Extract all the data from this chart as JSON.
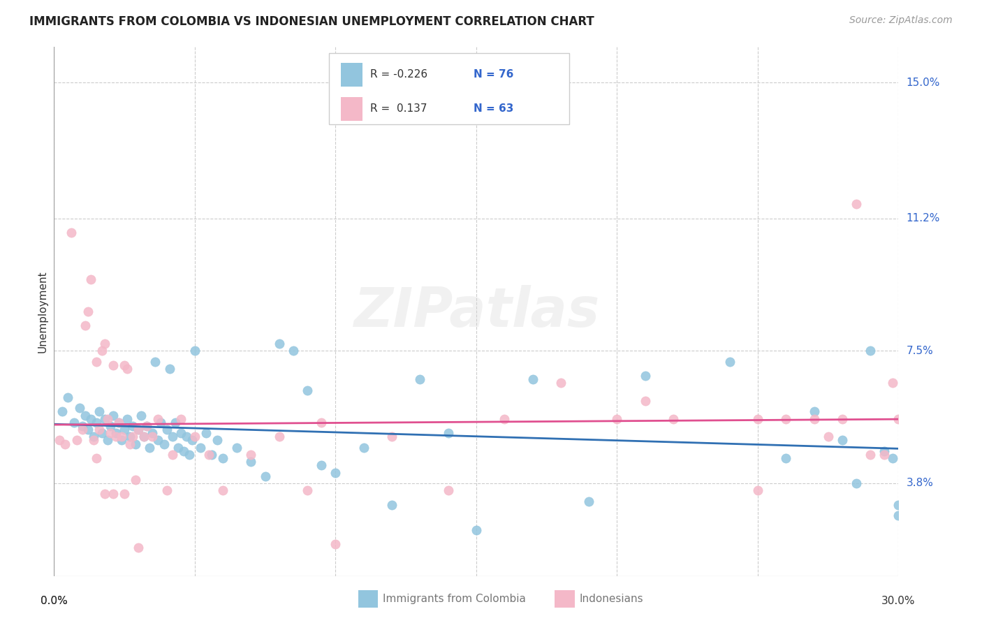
{
  "title": "IMMIGRANTS FROM COLOMBIA VS INDONESIAN UNEMPLOYMENT CORRELATION CHART",
  "source": "Source: ZipAtlas.com",
  "ylabel": "Unemployment",
  "yticks": [
    3.8,
    7.5,
    11.2,
    15.0
  ],
  "ytick_labels": [
    "3.8%",
    "7.5%",
    "11.2%",
    "15.0%"
  ],
  "xmin": 0.0,
  "xmax": 30.0,
  "ymin": 1.2,
  "ymax": 16.0,
  "legend_labels": [
    "Immigrants from Colombia",
    "Indonesians"
  ],
  "legend_R_blue": "-0.226",
  "legend_N_blue": "76",
  "legend_R_pink": "0.137",
  "legend_N_pink": "63",
  "color_blue": "#92c5de",
  "color_pink": "#f4b8c8",
  "color_line_blue": "#3070b3",
  "color_line_pink": "#e05090",
  "color_text_blue": "#3366cc",
  "watermark": "ZIPatlas",
  "blue_scatter_x": [
    0.3,
    0.5,
    0.7,
    0.9,
    1.0,
    1.1,
    1.2,
    1.3,
    1.4,
    1.5,
    1.6,
    1.7,
    1.8,
    1.9,
    2.0,
    2.1,
    2.2,
    2.3,
    2.4,
    2.5,
    2.6,
    2.7,
    2.8,
    2.9,
    3.0,
    3.1,
    3.2,
    3.3,
    3.4,
    3.5,
    3.6,
    3.7,
    3.8,
    3.9,
    4.0,
    4.1,
    4.2,
    4.3,
    4.4,
    4.5,
    4.6,
    4.7,
    4.8,
    4.9,
    5.0,
    5.2,
    5.4,
    5.6,
    5.8,
    6.0,
    6.5,
    7.0,
    7.5,
    8.0,
    8.5,
    9.0,
    9.5,
    10.0,
    11.0,
    12.0,
    13.0,
    14.0,
    15.0,
    17.0,
    19.0,
    21.0,
    24.0,
    26.0,
    27.0,
    28.0,
    28.5,
    29.0,
    29.5,
    29.8,
    30.0,
    30.0
  ],
  "blue_scatter_y": [
    5.8,
    6.2,
    5.5,
    5.9,
    5.4,
    5.7,
    5.3,
    5.6,
    5.1,
    5.5,
    5.8,
    5.2,
    5.6,
    5.0,
    5.4,
    5.7,
    5.2,
    5.5,
    5.0,
    5.3,
    5.6,
    5.1,
    5.4,
    4.9,
    5.3,
    5.7,
    5.1,
    5.4,
    4.8,
    5.2,
    7.2,
    5.0,
    5.5,
    4.9,
    5.3,
    7.0,
    5.1,
    5.5,
    4.8,
    5.2,
    4.7,
    5.1,
    4.6,
    5.0,
    7.5,
    4.8,
    5.2,
    4.6,
    5.0,
    4.5,
    4.8,
    4.4,
    4.0,
    7.7,
    7.5,
    6.4,
    4.3,
    4.1,
    4.8,
    3.2,
    6.7,
    5.2,
    2.5,
    6.7,
    3.3,
    6.8,
    7.2,
    4.5,
    5.8,
    5.0,
    3.8,
    7.5,
    4.7,
    4.5,
    3.2,
    2.9
  ],
  "pink_scatter_x": [
    0.2,
    0.4,
    0.6,
    0.8,
    1.0,
    1.1,
    1.2,
    1.3,
    1.4,
    1.5,
    1.6,
    1.7,
    1.8,
    1.9,
    2.0,
    2.1,
    2.2,
    2.3,
    2.4,
    2.5,
    2.6,
    2.7,
    2.8,
    2.9,
    3.0,
    3.2,
    3.3,
    3.5,
    3.7,
    4.0,
    4.2,
    4.5,
    5.0,
    5.5,
    6.0,
    7.0,
    8.0,
    9.0,
    10.0,
    12.0,
    14.0,
    16.0,
    18.0,
    20.0,
    21.0,
    22.0,
    25.0,
    26.0,
    27.0,
    28.0,
    28.5,
    29.0,
    29.5,
    29.8,
    30.0,
    25.0,
    27.5,
    9.5,
    1.8,
    2.1,
    2.5,
    3.0,
    1.5
  ],
  "pink_scatter_y": [
    5.0,
    4.9,
    10.8,
    5.0,
    5.3,
    8.2,
    8.6,
    9.5,
    5.0,
    7.2,
    5.3,
    7.5,
    7.7,
    5.6,
    5.2,
    7.1,
    5.1,
    5.5,
    5.1,
    7.1,
    7.0,
    4.9,
    5.1,
    3.9,
    5.3,
    5.1,
    5.4,
    5.1,
    5.6,
    3.6,
    4.6,
    5.6,
    5.1,
    4.6,
    3.6,
    4.6,
    5.1,
    3.6,
    2.1,
    5.1,
    3.6,
    5.6,
    6.6,
    5.6,
    6.1,
    5.6,
    3.6,
    5.6,
    5.6,
    5.6,
    11.6,
    4.6,
    4.6,
    6.6,
    5.6,
    5.6,
    5.1,
    5.5,
    3.5,
    3.5,
    3.5,
    2.0,
    4.5
  ]
}
